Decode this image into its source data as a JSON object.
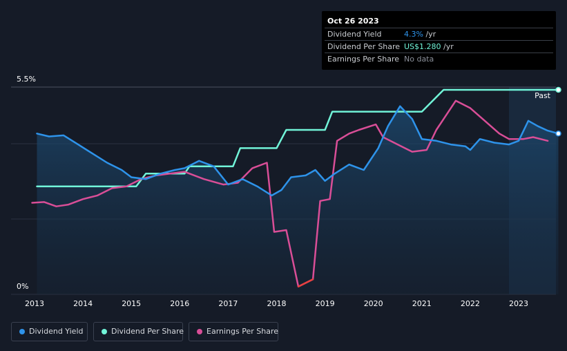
{
  "tooltip": {
    "date": "Oct 26 2023",
    "rows": [
      {
        "label": "Dividend Yield",
        "value": "4.3%",
        "unit": " /yr",
        "color": "#2e93ea"
      },
      {
        "label": "Dividend Per Share",
        "value": "US$1.280",
        "unit": " /yr",
        "color": "#71f4d8"
      },
      {
        "label": "Earnings Per Share",
        "value": "No data",
        "unit": "",
        "color": "#8a8f99"
      }
    ]
  },
  "legend": [
    {
      "label": "Dividend Yield",
      "color": "#2e93ea"
    },
    {
      "label": "Dividend Per Share",
      "color": "#71f4d8"
    },
    {
      "label": "Earnings Per Share",
      "color": "#d94e97"
    }
  ],
  "chart_data": {
    "type": "line",
    "title": "",
    "y_axis_labels": {
      "top": "5.5%",
      "bottom": "0%"
    },
    "ylim": [
      0,
      5.5
    ],
    "xlim": [
      2012.95,
      2023.85
    ],
    "x_ticks": [
      "2013",
      "2014",
      "2015",
      "2016",
      "2017",
      "2018",
      "2019",
      "2020",
      "2021",
      "2022",
      "2023"
    ],
    "past_label": "Past",
    "past_region_start": 2022.8,
    "series": [
      {
        "name": "Dividend Yield",
        "unit": "%",
        "color": "#2e93ea",
        "points": [
          [
            2013.05,
            4.3
          ],
          [
            2013.3,
            4.22
          ],
          [
            2013.6,
            4.25
          ],
          [
            2013.9,
            4.0
          ],
          [
            2014.2,
            3.75
          ],
          [
            2014.5,
            3.5
          ],
          [
            2014.8,
            3.3
          ],
          [
            2015.0,
            3.1
          ],
          [
            2015.3,
            3.05
          ],
          [
            2015.6,
            3.2
          ],
          [
            2015.9,
            3.3
          ],
          [
            2016.1,
            3.35
          ],
          [
            2016.4,
            3.55
          ],
          [
            2016.7,
            3.4
          ],
          [
            2017.0,
            2.9
          ],
          [
            2017.3,
            3.05
          ],
          [
            2017.6,
            2.85
          ],
          [
            2017.9,
            2.6
          ],
          [
            2018.1,
            2.75
          ],
          [
            2018.3,
            3.1
          ],
          [
            2018.6,
            3.15
          ],
          [
            2018.8,
            3.3
          ],
          [
            2019.0,
            3.0
          ],
          [
            2019.2,
            3.2
          ],
          [
            2019.5,
            3.45
          ],
          [
            2019.8,
            3.3
          ],
          [
            2020.1,
            3.9
          ],
          [
            2020.3,
            4.5
          ],
          [
            2020.55,
            5.05
          ],
          [
            2020.8,
            4.7
          ],
          [
            2021.0,
            4.15
          ],
          [
            2021.3,
            4.1
          ],
          [
            2021.6,
            4.0
          ],
          [
            2021.9,
            3.95
          ],
          [
            2022.0,
            3.85
          ],
          [
            2022.2,
            4.15
          ],
          [
            2022.5,
            4.05
          ],
          [
            2022.8,
            4.0
          ],
          [
            2023.0,
            4.1
          ],
          [
            2023.2,
            4.65
          ],
          [
            2023.4,
            4.5
          ],
          [
            2023.6,
            4.38
          ],
          [
            2023.82,
            4.3
          ]
        ]
      },
      {
        "name": "Dividend Per Share",
        "unit": "US$",
        "color": "#71f4d8",
        "points": [
          [
            2013.05,
            2.85
          ],
          [
            2015.1,
            2.85
          ],
          [
            2015.3,
            3.2
          ],
          [
            2016.1,
            3.2
          ],
          [
            2016.2,
            3.4
          ],
          [
            2017.1,
            3.4
          ],
          [
            2017.25,
            3.9
          ],
          [
            2018.0,
            3.9
          ],
          [
            2018.2,
            4.4
          ],
          [
            2019.0,
            4.4
          ],
          [
            2019.15,
            4.9
          ],
          [
            2021.0,
            4.9
          ],
          [
            2021.45,
            5.5
          ],
          [
            2023.82,
            5.5
          ]
        ]
      },
      {
        "name": "Earnings Per Share",
        "unit": "US$",
        "color": "#d94e97",
        "points": [
          [
            2012.95,
            2.4
          ],
          [
            2013.2,
            2.42
          ],
          [
            2013.45,
            2.3
          ],
          [
            2013.7,
            2.35
          ],
          [
            2014.0,
            2.5
          ],
          [
            2014.3,
            2.6
          ],
          [
            2014.6,
            2.8
          ],
          [
            2014.9,
            2.85
          ],
          [
            2015.2,
            3.05
          ],
          [
            2015.5,
            3.15
          ],
          [
            2015.8,
            3.2
          ],
          [
            2016.1,
            3.25
          ],
          [
            2016.5,
            3.05
          ],
          [
            2016.9,
            2.9
          ],
          [
            2017.2,
            2.95
          ],
          [
            2017.5,
            3.35
          ],
          [
            2017.8,
            3.5
          ],
          [
            2017.95,
            1.6
          ],
          [
            2018.2,
            1.65
          ],
          [
            2018.45,
            0.1
          ],
          [
            2018.75,
            0.3
          ],
          [
            2018.9,
            2.45
          ],
          [
            2019.1,
            2.5
          ],
          [
            2019.25,
            4.1
          ],
          [
            2019.5,
            4.3
          ],
          [
            2019.7,
            4.4
          ],
          [
            2020.05,
            4.55
          ],
          [
            2020.2,
            4.2
          ],
          [
            2020.5,
            4.0
          ],
          [
            2020.8,
            3.8
          ],
          [
            2021.1,
            3.85
          ],
          [
            2021.3,
            4.4
          ],
          [
            2021.7,
            5.2
          ],
          [
            2022.0,
            5.0
          ],
          [
            2022.3,
            4.65
          ],
          [
            2022.6,
            4.3
          ],
          [
            2022.8,
            4.15
          ],
          [
            2023.1,
            4.15
          ],
          [
            2023.3,
            4.2
          ],
          [
            2023.6,
            4.1
          ]
        ]
      }
    ]
  }
}
